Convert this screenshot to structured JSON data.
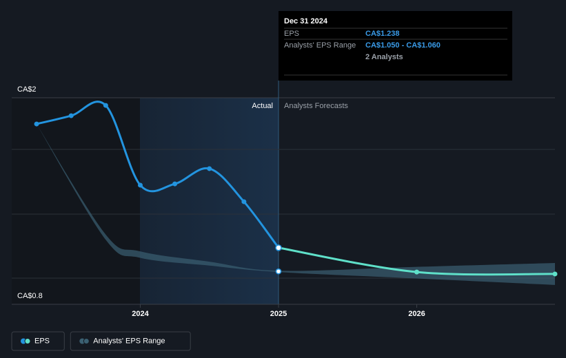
{
  "chart_data": {
    "type": "line",
    "xlim": [
      2023.07,
      2027
    ],
    "xticks": [
      2024,
      2025,
      2026
    ],
    "ylim": [
      0.8,
      2.4
    ],
    "yticks": [
      {
        "value": 2,
        "label": "CA$2"
      },
      {
        "value": 0.8,
        "label": "CA$0.8"
      }
    ],
    "actual_label": "Actual",
    "forecast_label": "Analysts Forecasts",
    "forecast_start": 2025,
    "series": [
      {
        "name": "EPS",
        "color": "#2394df",
        "forecast_color": "#5fe0c9",
        "x": [
          2023.25,
          2023.5,
          2023.75,
          2024,
          2024.25,
          2024.5,
          2024.75,
          2025,
          2026,
          2027
        ],
        "values": [
          2.197,
          2.261,
          2.341,
          1.723,
          1.733,
          1.851,
          1.595,
          1.238,
          1.05,
          1.035
        ]
      },
      {
        "name": "Analysts' EPS Range",
        "color": "#3b6072",
        "x": [
          2023.25,
          2023.75,
          2024,
          2024.5,
          2025,
          2026,
          2027
        ],
        "low": [
          2.197,
          1.3,
          1.16,
          1.1,
          1.05,
          1.0,
          0.95
        ],
        "high": [
          2.197,
          1.34,
          1.21,
          1.13,
          1.06,
          1.09,
          1.12
        ]
      }
    ],
    "tooltip": {
      "date": "Dec 31 2024",
      "eps_label": "EPS",
      "eps_value": "CA$1.238",
      "range_label": "Analysts' EPS Range",
      "range_value": "CA$1.050 - CA$1.060",
      "analysts": "2 Analysts"
    }
  }
}
